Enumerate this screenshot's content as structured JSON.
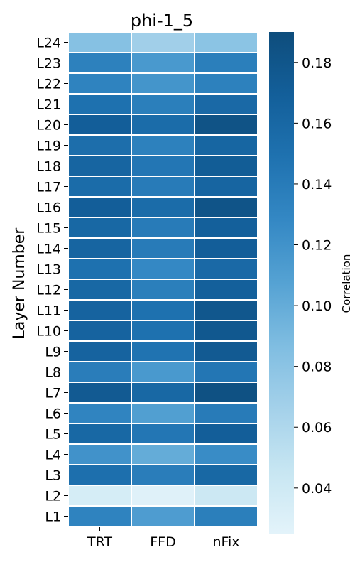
{
  "chart_data": {
    "type": "heatmap",
    "title": "phi-1_5",
    "xlabel": "",
    "ylabel": "Layer Number",
    "columns": [
      "TRT",
      "FFD",
      "nFix"
    ],
    "rows": [
      "L24",
      "L23",
      "L22",
      "L21",
      "L20",
      "L19",
      "L18",
      "L17",
      "L16",
      "L15",
      "L14",
      "L13",
      "L12",
      "L11",
      "L10",
      "L9",
      "L8",
      "L7",
      "L6",
      "L5",
      "L4",
      "L3",
      "L2",
      "L1"
    ],
    "values": [
      [
        0.083,
        0.068,
        0.08
      ],
      [
        0.135,
        0.115,
        0.137
      ],
      [
        0.133,
        0.118,
        0.135
      ],
      [
        0.15,
        0.137,
        0.158
      ],
      [
        0.17,
        0.155,
        0.183
      ],
      [
        0.153,
        0.135,
        0.162
      ],
      [
        0.163,
        0.145,
        0.172
      ],
      [
        0.155,
        0.14,
        0.163
      ],
      [
        0.17,
        0.155,
        0.182
      ],
      [
        0.16,
        0.14,
        0.168
      ],
      [
        0.163,
        0.14,
        0.17
      ],
      [
        0.15,
        0.128,
        0.158
      ],
      [
        0.16,
        0.137,
        0.168
      ],
      [
        0.165,
        0.15,
        0.178
      ],
      [
        0.165,
        0.15,
        0.177
      ],
      [
        0.165,
        0.148,
        0.175
      ],
      [
        0.138,
        0.115,
        0.145
      ],
      [
        0.175,
        0.16,
        0.185
      ],
      [
        0.132,
        0.11,
        0.14
      ],
      [
        0.16,
        0.145,
        0.17
      ],
      [
        0.12,
        0.1,
        0.125
      ],
      [
        0.152,
        0.138,
        0.16
      ],
      [
        0.035,
        0.028,
        0.042
      ],
      [
        0.133,
        0.112,
        0.137
      ]
    ],
    "colorbar": {
      "label": "Correlation",
      "range": [
        0.025,
        0.19
      ],
      "ticks": [
        0.04,
        0.06,
        0.08,
        0.1,
        0.12,
        0.14,
        0.16,
        0.18
      ],
      "tick_labels": [
        "0.04",
        "0.06",
        "0.08",
        "0.10",
        "0.12",
        "0.14",
        "0.16",
        "0.18"
      ],
      "colormap": [
        "#e3f3fa",
        "#c7e6f2",
        "#a4d1ea",
        "#7fbde1",
        "#55a2d3",
        "#3488c4",
        "#1f72b0",
        "#135f9a",
        "#0e4d7c"
      ]
    }
  }
}
